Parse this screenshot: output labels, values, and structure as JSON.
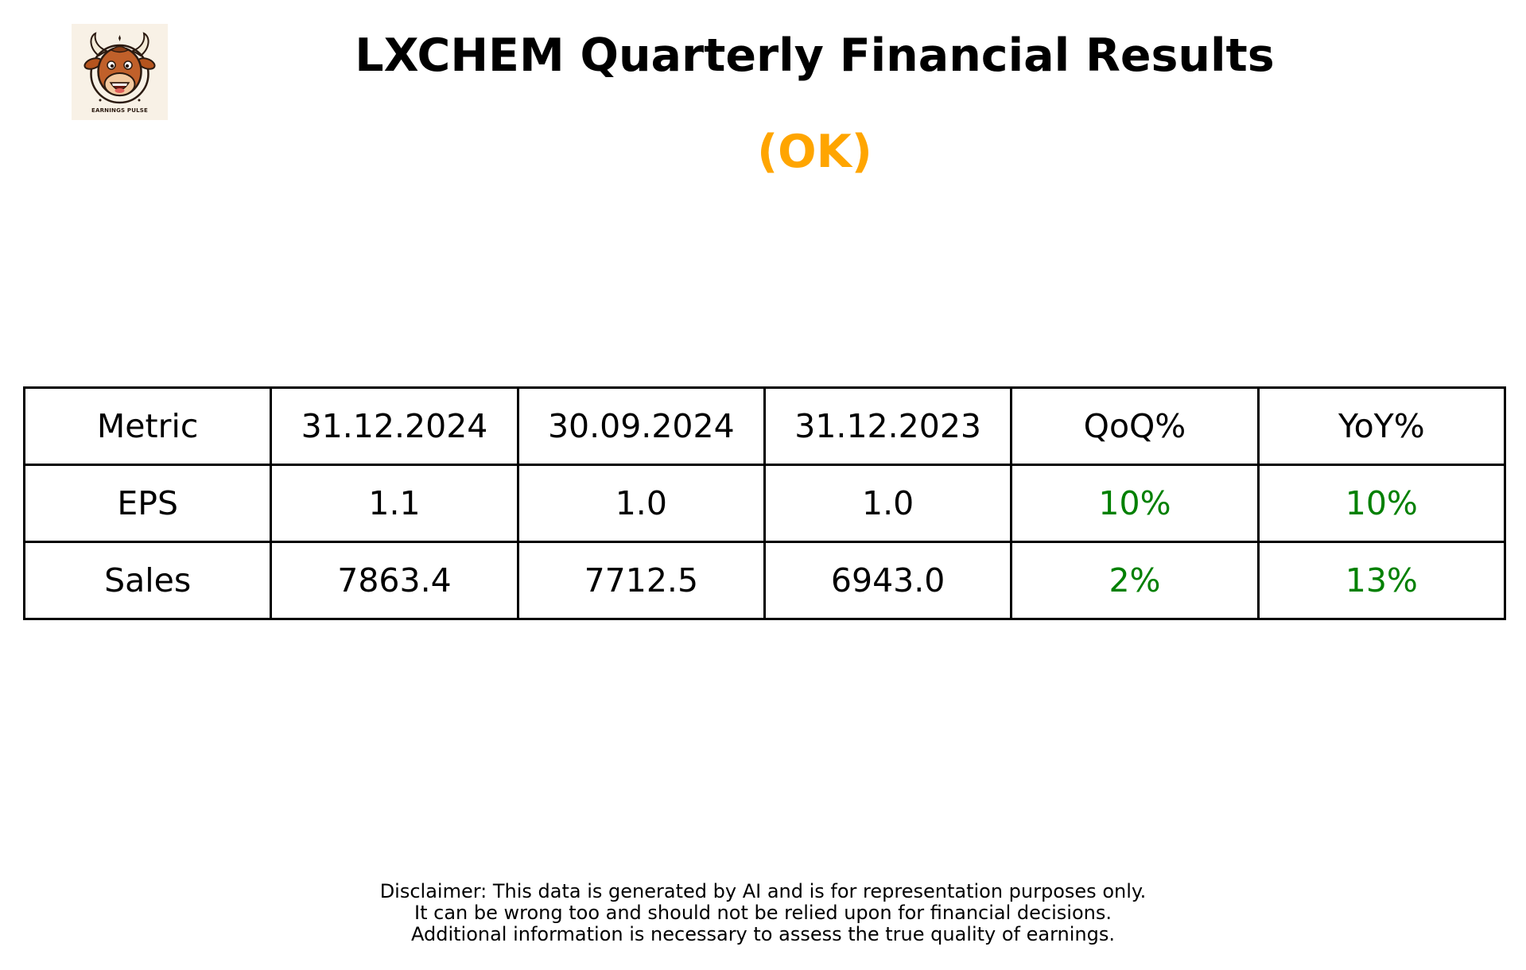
{
  "logo": {
    "icon": "bull-mascot-icon",
    "caption": "EARNINGS PULSE",
    "background": "#f8f1e6"
  },
  "title": "LXCHEM Quarterly Financial Results",
  "rating": {
    "text": "(OK)",
    "color": "#ffa500"
  },
  "table": {
    "headers": [
      "Metric",
      "31.12.2024",
      "30.09.2024",
      "31.12.2023",
      "QoQ%",
      "YoY%"
    ],
    "rows": [
      {
        "metric": "EPS",
        "cells": [
          "1.1",
          "1.0",
          "1.0"
        ],
        "qoq": "10%",
        "yoy": "10%"
      },
      {
        "metric": "Sales",
        "cells": [
          "7863.4",
          "7712.5",
          "6943.0"
        ],
        "qoq": "2%",
        "yoy": "13%"
      }
    ],
    "change_color": "#008000"
  },
  "disclaimer": [
    "Disclaimer: This data is generated by AI and is for representation purposes only.",
    "It can be wrong too and should not be relied upon for financial decisions.",
    "Additional information is necessary to assess the true quality of earnings."
  ]
}
